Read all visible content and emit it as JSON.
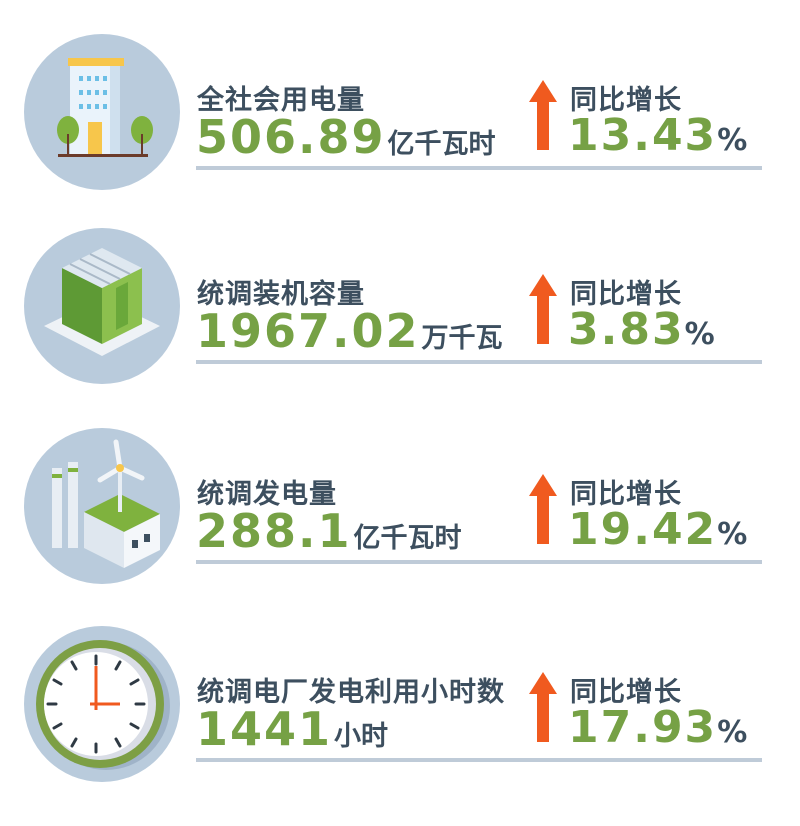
{
  "colors": {
    "accent_green": "#76a145",
    "text_dark": "#3d4f5f",
    "arrow_orange": "#f05a1f",
    "circle_bg": "#b9cbdc",
    "divider": "#bfcbd8"
  },
  "rows": [
    {
      "icon": "office-building-icon",
      "title": "全社会用电量",
      "value": "506.89",
      "unit": "亿千瓦时",
      "yoy_label": "同比增长",
      "yoy_value": "13.43",
      "yoy_unit": "%",
      "trend": "up-arrow-icon"
    },
    {
      "icon": "power-plant-building-icon",
      "title": "统调装机容量",
      "value": "1967.02",
      "unit": "万千瓦",
      "yoy_label": "同比增长",
      "yoy_value": "3.83",
      "yoy_unit": "%",
      "trend": "up-arrow-icon"
    },
    {
      "icon": "factory-wind-turbine-icon",
      "title": "统调发电量",
      "value": "288.1",
      "unit": "亿千瓦时",
      "yoy_label": "同比增长",
      "yoy_value": "19.42",
      "yoy_unit": "%",
      "trend": "up-arrow-icon"
    },
    {
      "icon": "clock-icon",
      "title": "统调电厂发电利用小时数",
      "value": "1441",
      "unit": "小时",
      "yoy_label": "同比增长",
      "yoy_value": "17.93",
      "yoy_unit": "%",
      "trend": "up-arrow-icon"
    }
  ]
}
